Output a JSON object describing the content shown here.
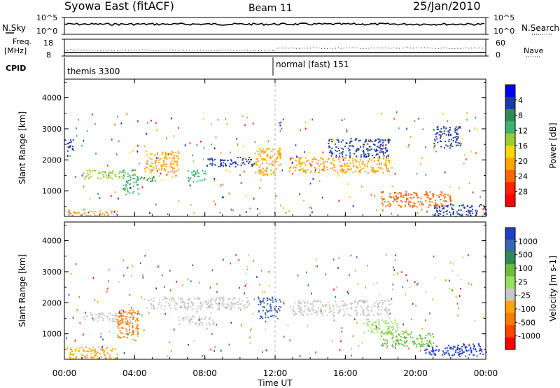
{
  "header": {
    "station": "Syowa East (fitACF)",
    "beam": "Beam 11",
    "date": "25/Jan/2010"
  },
  "strips": {
    "nsky_label": "N.Sky",
    "nsearch_label": "N.Search",
    "nsky_ticks": [
      "10^5",
      "10^0"
    ],
    "nsearch_ticks": [
      "10^5",
      "10^0"
    ],
    "freq_label": "Freq.",
    "freq_unit": "[MHz]",
    "freq_ticks": [
      "18",
      "8"
    ],
    "nave_label": "Nave",
    "nave_ticks": [
      "60",
      "0"
    ],
    "cpid_label": "CPID",
    "cpid_modes": [
      {
        "name": "themis 3300",
        "start_hour": 0
      },
      {
        "name": "normal (fast) 151",
        "start_hour": 12
      }
    ]
  },
  "x_axis": {
    "label": "Time UT",
    "ticks": [
      "00:00",
      "04:00",
      "08:00",
      "12:00",
      "16:00",
      "20:00",
      "00:00"
    ],
    "range_hours": [
      0,
      24
    ]
  },
  "chart_data": [
    {
      "type": "heatmap",
      "parameter": "power",
      "ylabel": "Slant Range [km]",
      "yticks": [
        "1000",
        "2000",
        "3000",
        "4000"
      ],
      "ylim": [
        180,
        4600
      ],
      "colorbar": {
        "label": "Power [dB]",
        "ticks": [
          "4",
          "8",
          "12",
          "16",
          "20",
          "24",
          "28"
        ],
        "colors": [
          "#0000ff",
          "#1e3c9e",
          "#2e8b57",
          "#3cb371",
          "#9acd32",
          "#ffd700",
          "#ffa500",
          "#ff6600",
          "#ff2200",
          "#ff0000"
        ]
      },
      "regions": [
        {
          "t": [
            0.1,
            0.6
          ],
          "r": [
            200,
            420
          ],
          "color": "#ff6600"
        },
        {
          "t": [
            0.6,
            3.0
          ],
          "r": [
            200,
            380
          ],
          "color": "#ffa500"
        },
        {
          "t": [
            0.0,
            0.5
          ],
          "r": [
            2300,
            2700
          ],
          "color": "#1e3c9e"
        },
        {
          "t": [
            1.0,
            3.3
          ],
          "r": [
            1400,
            1700
          ],
          "color": "#9acd32"
        },
        {
          "t": [
            3.3,
            4.2
          ],
          "r": [
            900,
            1700
          ],
          "color": "#3cb371"
        },
        {
          "t": [
            4.5,
            6.5
          ],
          "r": [
            1600,
            2300
          ],
          "color": "#ffa500"
        },
        {
          "t": [
            4.3,
            5.2
          ],
          "r": [
            1300,
            1500
          ],
          "color": "#2e8b57"
        },
        {
          "t": [
            7.0,
            8.0
          ],
          "r": [
            1300,
            1700
          ],
          "color": "#3cb371"
        },
        {
          "t": [
            8.0,
            10.8
          ],
          "r": [
            1800,
            2100
          ],
          "color": "#1e3c9e"
        },
        {
          "t": [
            10.8,
            12.3
          ],
          "r": [
            1500,
            2400
          ],
          "color": "#ffa500"
        },
        {
          "t": [
            12.8,
            18.5
          ],
          "r": [
            1600,
            2100
          ],
          "color": "#ffa500"
        },
        {
          "t": [
            15.0,
            18.5
          ],
          "r": [
            2100,
            2700
          ],
          "color": "#1e3c9e"
        },
        {
          "t": [
            18.0,
            22.0
          ],
          "r": [
            500,
            1000
          ],
          "color": "#ff6600"
        },
        {
          "t": [
            21.0,
            24.0
          ],
          "r": [
            200,
            600
          ],
          "color": "#1e3c9e"
        },
        {
          "t": [
            21.0,
            22.5
          ],
          "r": [
            2400,
            3100
          ],
          "color": "#1e3c9e"
        }
      ]
    },
    {
      "type": "heatmap",
      "parameter": "velocity",
      "ylabel": "Slant Range [km]",
      "yticks": [
        "1000",
        "2000",
        "3000",
        "4000"
      ],
      "ylim": [
        180,
        4600
      ],
      "colorbar": {
        "label": "Velocity [m s-1]",
        "ticks": [
          "1000",
          "500",
          "100",
          "25",
          "-25",
          "-100",
          "-500",
          "-1000"
        ],
        "colors": [
          "#1f3fc4",
          "#3a66b2",
          "#2e8b57",
          "#6bbf3f",
          "#98e060",
          "#c8c8c8",
          "#ffa500",
          "#ff7a00",
          "#ff4400",
          "#ff0000"
        ]
      },
      "regions": [
        {
          "t": [
            0.1,
            3.0
          ],
          "r": [
            200,
            600
          ],
          "color": "#ffa500"
        },
        {
          "t": [
            1.0,
            4.0
          ],
          "r": [
            1400,
            1700
          ],
          "color": "#c8c8c8"
        },
        {
          "t": [
            3.0,
            4.2
          ],
          "r": [
            800,
            1800
          ],
          "color": "#ff7a00"
        },
        {
          "t": [
            4.5,
            10.5
          ],
          "r": [
            1800,
            2200
          ],
          "color": "#c8c8c8"
        },
        {
          "t": [
            6.5,
            8.5
          ],
          "r": [
            1300,
            1600
          ],
          "color": "#c8c8c8"
        },
        {
          "t": [
            11.0,
            12.3
          ],
          "r": [
            1500,
            2200
          ],
          "color": "#3a66b2"
        },
        {
          "t": [
            12.8,
            18.5
          ],
          "r": [
            1600,
            2100
          ],
          "color": "#c8c8c8"
        },
        {
          "t": [
            18.0,
            21.0
          ],
          "r": [
            600,
            1100
          ],
          "color": "#6bbf3f"
        },
        {
          "t": [
            20.5,
            24.0
          ],
          "r": [
            300,
            700
          ],
          "color": "#1f3fc4"
        },
        {
          "t": [
            17.0,
            19.0
          ],
          "r": [
            1000,
            1500
          ],
          "color": "#98e060"
        }
      ]
    }
  ]
}
